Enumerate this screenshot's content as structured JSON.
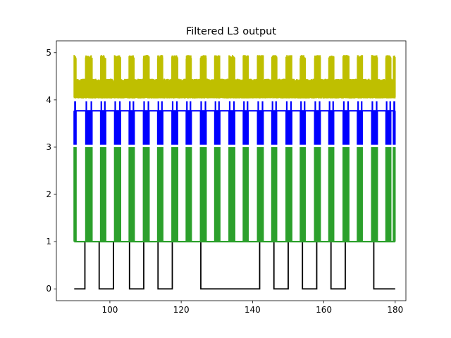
{
  "chart_data": {
    "type": "line",
    "title": "Filtered L3 output",
    "xlabel": "",
    "ylabel": "",
    "xlim": [
      85,
      183
    ],
    "ylim": [
      -0.25,
      5.25
    ],
    "xticks": [
      100,
      120,
      140,
      160,
      180
    ],
    "xtick_labels": [
      "100",
      "120",
      "140",
      "160",
      "180"
    ],
    "yticks": [
      0,
      1,
      2,
      3,
      4,
      5
    ],
    "ytick_labels": [
      "0",
      "1",
      "2",
      "3",
      "4",
      "5"
    ],
    "grid": false,
    "legend": "none",
    "x_range": [
      90,
      180
    ],
    "series": [
      {
        "name": "digital gating signal",
        "color": "#000000",
        "low": 0,
        "high": 1,
        "high_intervals": [
          [
            93,
            97
          ],
          [
            101,
            105.5
          ],
          [
            109.5,
            113.5
          ],
          [
            117.5,
            125.5
          ],
          [
            142,
            146
          ],
          [
            150,
            154
          ],
          [
            158,
            162
          ],
          [
            166,
            174
          ]
        ]
      },
      {
        "name": "green spiking trace",
        "color": "#2ca02c",
        "baseline": 1,
        "peak": 3,
        "burst_intervals": [
          [
            90,
            90.5
          ],
          [
            93.2,
            95
          ],
          [
            97.4,
            98.8
          ],
          [
            101.3,
            103
          ],
          [
            105.4,
            106.8
          ],
          [
            109.4,
            111
          ],
          [
            113.4,
            114.8
          ],
          [
            117.4,
            119
          ],
          [
            121.4,
            122.8
          ],
          [
            125.4,
            127
          ],
          [
            129.4,
            130.8
          ],
          [
            133.4,
            135
          ],
          [
            137.4,
            138.8
          ],
          [
            141.4,
            143
          ],
          [
            145.4,
            146.8
          ],
          [
            149.4,
            151
          ],
          [
            153.4,
            154.8
          ],
          [
            157.4,
            159
          ],
          [
            161.4,
            162.8
          ],
          [
            165.4,
            167
          ],
          [
            169.4,
            170.8
          ],
          [
            173.4,
            175
          ],
          [
            177.4,
            178.8
          ],
          [
            179.5,
            180
          ]
        ]
      },
      {
        "name": "blue spiking trace",
        "color": "#0000ff",
        "baseline": 3.77,
        "trough": 3.05,
        "spike_peak": 3.97,
        "burst_intervals": [
          [
            90,
            90.5
          ],
          [
            93.2,
            95
          ],
          [
            97.4,
            98.8
          ],
          [
            101.3,
            103
          ],
          [
            105.4,
            106.8
          ],
          [
            109.4,
            111
          ],
          [
            113.4,
            114.8
          ],
          [
            117.4,
            119
          ],
          [
            121.4,
            122.8
          ],
          [
            125.4,
            127
          ],
          [
            129.4,
            130.8
          ],
          [
            133.4,
            135
          ],
          [
            137.4,
            138.8
          ],
          [
            141.4,
            143
          ],
          [
            145.4,
            146.8
          ],
          [
            149.4,
            151
          ],
          [
            153.4,
            154.8
          ],
          [
            157.4,
            159
          ],
          [
            161.4,
            162.8
          ],
          [
            165.4,
            167
          ],
          [
            169.4,
            170.8
          ],
          [
            173.4,
            175
          ],
          [
            177.4,
            178.8
          ],
          [
            179.5,
            180
          ]
        ]
      },
      {
        "name": "olive oscillating trace",
        "color": "#bfbf00",
        "band_low": 4.03,
        "band_high": 4.45,
        "peak": 4.95,
        "burst_intervals": [
          [
            90,
            90.5
          ],
          [
            93.2,
            95
          ],
          [
            97.4,
            98.8
          ],
          [
            101.3,
            103
          ],
          [
            105.4,
            106.8
          ],
          [
            109.4,
            111
          ],
          [
            113.4,
            114.8
          ],
          [
            117.4,
            119
          ],
          [
            121.4,
            122.8
          ],
          [
            125.4,
            127
          ],
          [
            129.4,
            130.8
          ],
          [
            133.4,
            135
          ],
          [
            137.4,
            138.8
          ],
          [
            141.4,
            143
          ],
          [
            145.4,
            146.8
          ],
          [
            149.4,
            151
          ],
          [
            153.4,
            154.8
          ],
          [
            157.4,
            159
          ],
          [
            161.4,
            162.8
          ],
          [
            165.4,
            167
          ],
          [
            169.4,
            170.8
          ],
          [
            173.4,
            175
          ],
          [
            177.4,
            178.8
          ],
          [
            179.5,
            180
          ]
        ]
      }
    ]
  }
}
